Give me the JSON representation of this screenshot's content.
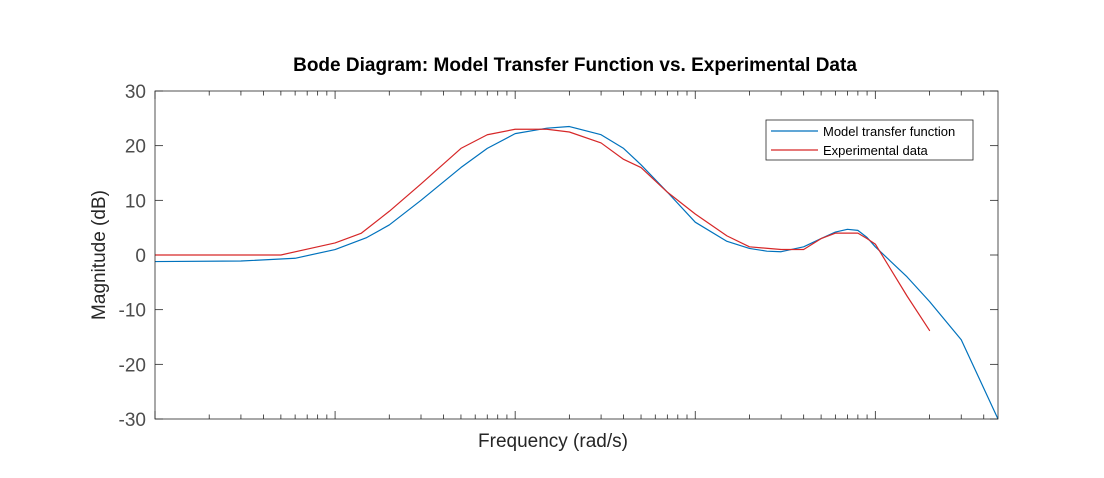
{
  "chart_data": {
    "type": "line",
    "title": "Bode Diagram: Model Transfer Function vs. Experimental Data",
    "xlabel": "Frequency  (rad/s)",
    "ylabel": "Magnitude (dB)",
    "xscale": "log",
    "xlim": [
      0.01,
      480
    ],
    "ylim": [
      -30,
      30
    ],
    "yticks": [
      30,
      20,
      10,
      0,
      -10,
      -20,
      -30
    ],
    "ytick_labels": [
      "30",
      "20",
      "10",
      "0",
      "-10",
      "-20",
      "-30"
    ],
    "xtick_labels_visible": false,
    "grid": false,
    "legend_position": "top-right",
    "series": [
      {
        "name": "Model transfer function",
        "color": "#0072BD",
        "x": [
          0.01,
          0.03,
          0.06,
          0.1,
          0.15,
          0.2,
          0.3,
          0.5,
          0.7,
          1.0,
          1.5,
          2.0,
          3.0,
          4.0,
          5.0,
          7.0,
          10.0,
          15.0,
          20.0,
          25.0,
          30.0,
          40.0,
          50.0,
          60.0,
          70.0,
          80.0,
          90.0,
          100.0,
          150.0,
          200.0,
          300.0,
          480.0
        ],
        "y": [
          -1.2,
          -1.1,
          -0.6,
          1.0,
          3.2,
          5.5,
          10.0,
          16.0,
          19.5,
          22.2,
          23.2,
          23.5,
          22.0,
          19.5,
          16.5,
          11.5,
          6.0,
          2.5,
          1.2,
          0.7,
          0.6,
          1.5,
          3.0,
          4.2,
          4.7,
          4.5,
          3.2,
          1.5,
          -4.0,
          -8.5,
          -15.5,
          -30.0
        ]
      },
      {
        "name": "Experimental data",
        "color": "#D62728",
        "x": [
          0.01,
          0.03,
          0.05,
          0.08,
          0.1,
          0.14,
          0.2,
          0.3,
          0.5,
          0.7,
          1.0,
          1.5,
          2.0,
          3.0,
          4.0,
          5.0,
          7.0,
          10.0,
          15.0,
          20.0,
          30.0,
          40.0,
          50.0,
          60.0,
          70.0,
          80.0,
          90.0,
          100.0,
          150.0,
          200.0
        ],
        "y": [
          0.0,
          0.0,
          0.0,
          1.5,
          2.2,
          4.0,
          8.0,
          13.0,
          19.5,
          22.0,
          23.0,
          23.0,
          22.5,
          20.5,
          17.5,
          16.0,
          11.5,
          7.5,
          3.5,
          1.5,
          1.0,
          1.0,
          3.0,
          4.0,
          4.0,
          4.0,
          3.0,
          2.0,
          -7.5,
          -13.8
        ]
      }
    ]
  }
}
